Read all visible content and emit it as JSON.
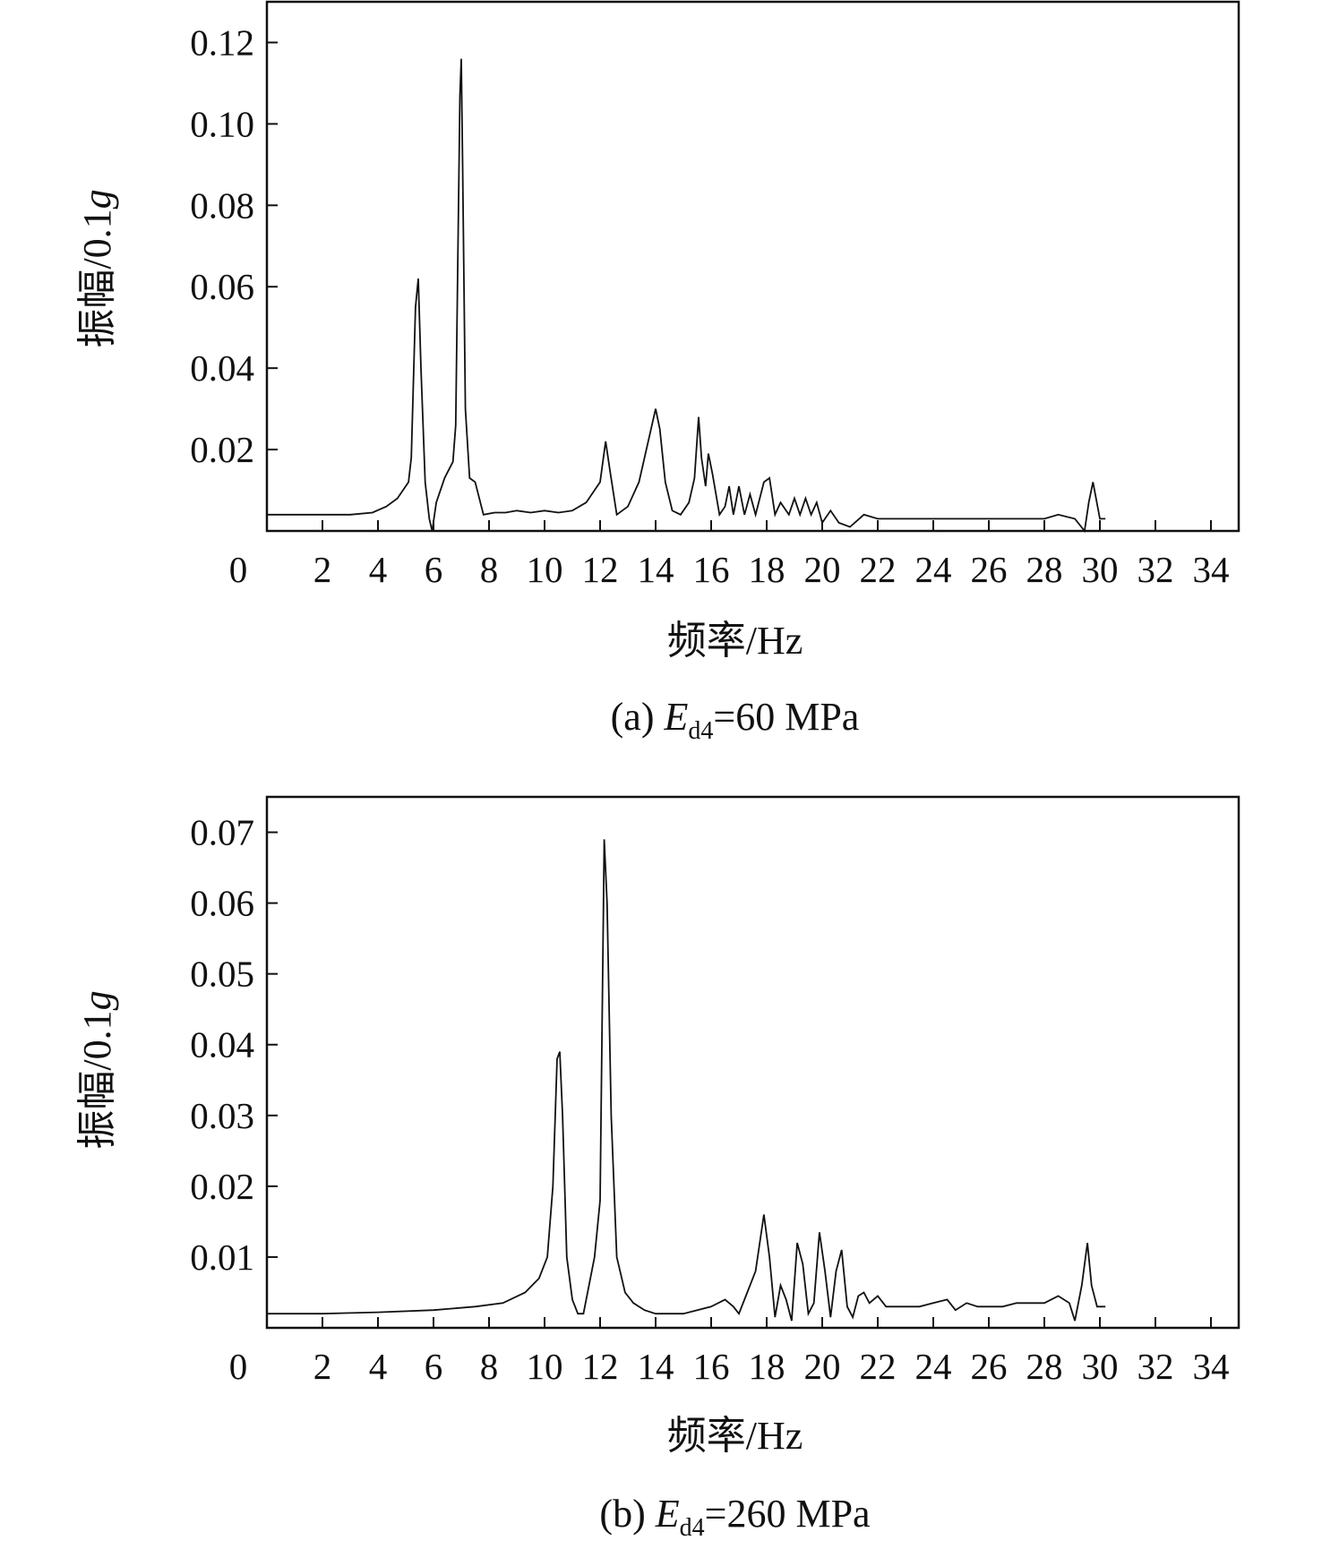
{
  "chart_data": [
    {
      "type": "line",
      "caption": "(a) Ed4=60 MPa",
      "caption_parts": {
        "prefix": "(a) ",
        "symbol": "E",
        "subscript": "d4",
        "suffix": "=60 MPa"
      },
      "xlabel": "频率/Hz",
      "ylabel": "振幅/0.1g",
      "ylabel_parts": {
        "main": "振幅/0.1",
        "italic": "g"
      },
      "xlim": [
        0,
        35
      ],
      "ylim": [
        0,
        0.13
      ],
      "x_ticks": [
        0,
        2,
        4,
        6,
        8,
        10,
        12,
        14,
        16,
        18,
        20,
        22,
        24,
        26,
        28,
        30,
        32,
        34
      ],
      "y_ticks": [
        0.02,
        0.04,
        0.06,
        0.08,
        0.1,
        0.12
      ],
      "y_tick_labels": [
        "0.02",
        "0.04",
        "0.06",
        "0.08",
        "0.10",
        "0.12"
      ],
      "grid": false,
      "line_color": "#111111",
      "x": [
        0.0,
        1.0,
        2.0,
        3.0,
        3.8,
        4.3,
        4.7,
        5.0,
        5.1,
        5.2,
        5.35,
        5.45,
        5.55,
        5.7,
        5.85,
        5.95,
        6.1,
        6.4,
        6.7,
        6.8,
        6.95,
        7.0,
        7.05,
        7.15,
        7.3,
        7.5,
        7.8,
        8.2,
        8.6,
        9.0,
        9.5,
        10.0,
        10.5,
        11.0,
        11.5,
        12.0,
        12.2,
        12.35,
        12.6,
        13.0,
        13.4,
        13.8,
        14.0,
        14.15,
        14.35,
        14.6,
        14.9,
        15.2,
        15.4,
        15.55,
        15.65,
        15.8,
        15.9,
        16.05,
        16.3,
        16.5,
        16.65,
        16.8,
        17.0,
        17.2,
        17.4,
        17.6,
        17.9,
        18.1,
        18.3,
        18.5,
        18.8,
        19.0,
        19.2,
        19.4,
        19.6,
        19.8,
        20.0,
        20.3,
        20.6,
        21.0,
        21.5,
        22.0,
        23.0,
        24.0,
        25.0,
        26.0,
        27.0,
        28.0,
        28.5,
        29.1,
        29.45,
        29.6,
        29.75,
        30.0,
        30.2
      ],
      "y": [
        0.004,
        0.004,
        0.004,
        0.004,
        0.0045,
        0.006,
        0.008,
        0.011,
        0.012,
        0.018,
        0.055,
        0.062,
        0.04,
        0.012,
        0.003,
        0.0,
        0.007,
        0.013,
        0.017,
        0.026,
        0.107,
        0.116,
        0.09,
        0.03,
        0.013,
        0.012,
        0.004,
        0.0045,
        0.0045,
        0.005,
        0.0045,
        0.005,
        0.0045,
        0.005,
        0.007,
        0.012,
        0.022,
        0.015,
        0.004,
        0.006,
        0.012,
        0.024,
        0.03,
        0.025,
        0.012,
        0.005,
        0.004,
        0.007,
        0.013,
        0.028,
        0.018,
        0.011,
        0.019,
        0.014,
        0.004,
        0.006,
        0.011,
        0.004,
        0.011,
        0.004,
        0.009,
        0.004,
        0.012,
        0.013,
        0.004,
        0.007,
        0.004,
        0.008,
        0.004,
        0.008,
        0.004,
        0.007,
        0.002,
        0.005,
        0.002,
        0.001,
        0.004,
        0.003,
        0.003,
        0.003,
        0.003,
        0.003,
        0.003,
        0.003,
        0.004,
        0.003,
        0.0,
        0.007,
        0.012,
        0.003,
        0.003
      ]
    },
    {
      "type": "line",
      "caption": "(b) Ed4=260 MPa",
      "caption_parts": {
        "prefix": "(b) ",
        "symbol": "E",
        "subscript": "d4",
        "suffix": "=260 MPa"
      },
      "xlabel": "频率/Hz",
      "ylabel": "振幅/0.1g",
      "ylabel_parts": {
        "main": "振幅/0.1",
        "italic": "g"
      },
      "xlim": [
        0,
        35
      ],
      "ylim": [
        0,
        0.075
      ],
      "x_ticks": [
        0,
        2,
        4,
        6,
        8,
        10,
        12,
        14,
        16,
        18,
        20,
        22,
        24,
        26,
        28,
        30,
        32,
        34
      ],
      "y_ticks": [
        0.01,
        0.02,
        0.03,
        0.04,
        0.05,
        0.06,
        0.07
      ],
      "y_tick_labels": [
        "0.01",
        "0.02",
        "0.03",
        "0.04",
        "0.05",
        "0.06",
        "0.07"
      ],
      "grid": false,
      "line_color": "#111111",
      "x": [
        0.0,
        2.0,
        4.0,
        6.0,
        7.5,
        8.5,
        9.3,
        9.8,
        10.1,
        10.3,
        10.45,
        10.55,
        10.65,
        10.8,
        11.0,
        11.2,
        11.4,
        11.6,
        11.8,
        12.0,
        12.15,
        12.25,
        12.4,
        12.6,
        12.9,
        13.2,
        13.6,
        14.0,
        14.5,
        15.0,
        15.5,
        16.0,
        16.5,
        16.8,
        17.0,
        17.3,
        17.6,
        17.9,
        18.1,
        18.3,
        18.5,
        18.7,
        18.9,
        19.1,
        19.3,
        19.5,
        19.7,
        19.9,
        20.1,
        20.3,
        20.5,
        20.7,
        20.9,
        21.1,
        21.3,
        21.5,
        21.7,
        22.0,
        22.3,
        22.7,
        23.0,
        23.5,
        24.0,
        24.5,
        24.8,
        25.2,
        25.6,
        26.0,
        26.5,
        27.0,
        27.5,
        28.0,
        28.5,
        28.9,
        29.1,
        29.35,
        29.55,
        29.7,
        29.9,
        30.2
      ],
      "y": [
        0.002,
        0.002,
        0.0022,
        0.0025,
        0.003,
        0.0035,
        0.005,
        0.007,
        0.01,
        0.02,
        0.038,
        0.039,
        0.03,
        0.01,
        0.004,
        0.002,
        0.002,
        0.006,
        0.01,
        0.018,
        0.069,
        0.06,
        0.03,
        0.01,
        0.005,
        0.0035,
        0.0025,
        0.002,
        0.002,
        0.002,
        0.0025,
        0.003,
        0.004,
        0.003,
        0.002,
        0.005,
        0.008,
        0.016,
        0.01,
        0.0015,
        0.006,
        0.004,
        0.001,
        0.012,
        0.009,
        0.002,
        0.0035,
        0.0135,
        0.008,
        0.0015,
        0.008,
        0.011,
        0.003,
        0.0015,
        0.0045,
        0.005,
        0.0035,
        0.0045,
        0.003,
        0.003,
        0.003,
        0.003,
        0.0035,
        0.004,
        0.0025,
        0.0035,
        0.003,
        0.003,
        0.003,
        0.0035,
        0.0035,
        0.0035,
        0.0045,
        0.0035,
        0.001,
        0.006,
        0.012,
        0.006,
        0.003,
        0.003
      ]
    }
  ]
}
